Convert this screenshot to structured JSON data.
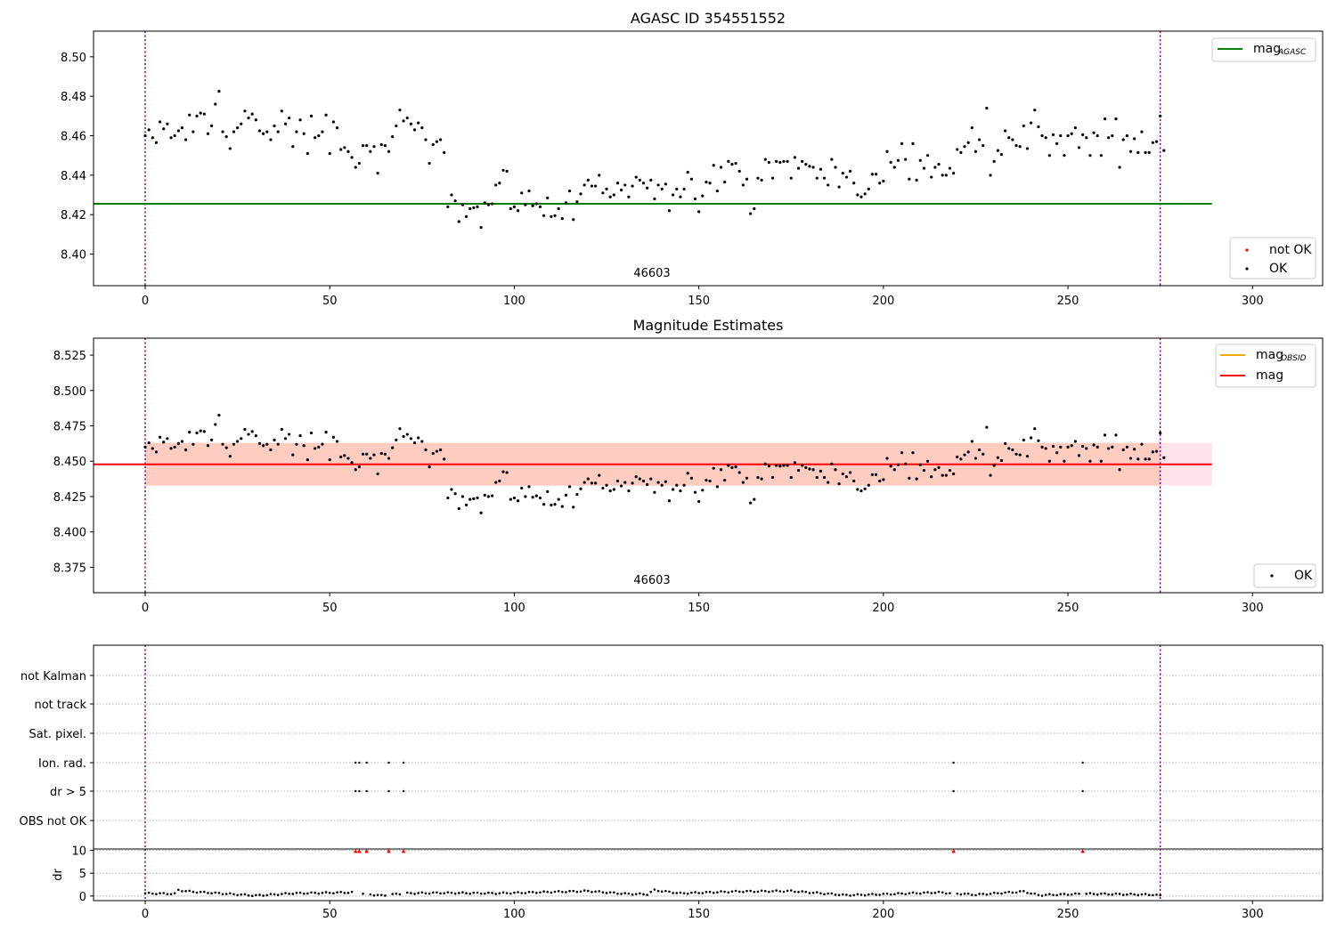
{
  "chart_data": [
    {
      "type": "scatter",
      "title": "AGASC ID 354551552",
      "obsid_label": "46603",
      "xlim": [
        -14,
        319
      ],
      "ylim": [
        8.384,
        8.513
      ],
      "x_ticks": [
        0,
        50,
        100,
        150,
        200,
        250,
        300
      ],
      "y_ticks": [
        8.4,
        8.42,
        8.44,
        8.46,
        8.48,
        8.5
      ],
      "y_tick_labels": [
        "8.40",
        "8.42",
        "8.44",
        "8.46",
        "8.48",
        "8.50"
      ],
      "obsid_boundaries": [
        0,
        275
      ],
      "mag_agasc": 8.4255,
      "mag_agasc_range": [
        0,
        289
      ],
      "legend": {
        "lines": [
          {
            "label": "mag",
            "sub": "AGASC",
            "color": "#008000"
          }
        ],
        "markers": [
          {
            "label": "not OK",
            "color": "#ff0000"
          },
          {
            "label": "OK",
            "color": "#000000"
          }
        ]
      },
      "ok_points": "from series mag_series, indices 0-275"
    },
    {
      "type": "scatter",
      "title": "Magnitude Estimates",
      "obsid_label": "46603",
      "xlim": [
        -14,
        319
      ],
      "ylim": [
        8.357,
        8.537
      ],
      "x_ticks": [
        0,
        50,
        100,
        150,
        200,
        250,
        300
      ],
      "y_ticks": [
        8.375,
        8.4,
        8.425,
        8.45,
        8.475,
        8.5,
        8.525
      ],
      "y_tick_labels": [
        "8.375",
        "8.400",
        "8.425",
        "8.450",
        "8.475",
        "8.500",
        "8.525"
      ],
      "obsid_boundaries": [
        0,
        275
      ],
      "mag_obsid": 8.4478,
      "mag_obsid_band": [
        8.4327,
        8.4629
      ],
      "mag_obsid_range": [
        0,
        275
      ],
      "mag": 8.4478,
      "mag_band": [
        8.4327,
        8.4629
      ],
      "mag_range": [
        0,
        289
      ],
      "legend": {
        "lines": [
          {
            "label": "mag",
            "sub": "OBSID",
            "color": "#ffa500"
          },
          {
            "label": "mag",
            "sub": "",
            "color": "#ff0000"
          }
        ],
        "markers": [
          {
            "label": "OK",
            "color": "#000000"
          }
        ]
      }
    },
    {
      "type": "scatter",
      "flag_labels": [
        "not Kalman",
        "not track",
        "Sat. pixel.",
        "Ion. rad.",
        "dr > 5",
        "OBS not OK"
      ],
      "flag_points": {
        "Ion. rad.": [
          57,
          58,
          60,
          66,
          70,
          219,
          254
        ],
        "dr > 5": [
          57,
          58,
          60,
          66,
          70,
          219,
          254
        ]
      },
      "x_ticks": [
        0,
        50,
        100,
        150,
        200,
        250,
        300
      ],
      "xlim": [
        -14,
        319
      ],
      "obsid_boundaries": [
        0,
        275
      ]
    },
    {
      "type": "scatter",
      "ylabel": "dr",
      "y_ticks": [
        0,
        5,
        10
      ],
      "y_tick_labels": [
        "0",
        "5",
        "10"
      ],
      "ylim": [
        -1,
        10.3
      ],
      "x_ticks": [
        0,
        50,
        100,
        150,
        200,
        250,
        300
      ],
      "x_tick_labels": [
        "0",
        "50",
        "100",
        "150",
        "200",
        "250",
        "300"
      ],
      "xlim": [
        -14,
        319
      ],
      "clipped_outliers": [
        57,
        58,
        60,
        66,
        70,
        219,
        254
      ],
      "obsid_boundaries": [
        0,
        275
      ]
    }
  ],
  "mag_series": [
    8.46,
    8.463,
    8.459,
    8.4565,
    8.467,
    8.4635,
    8.466,
    8.459,
    8.46,
    8.4625,
    8.464,
    8.458,
    8.4705,
    8.462,
    8.47,
    8.4715,
    8.471,
    8.461,
    8.465,
    8.476,
    8.4825,
    8.462,
    8.4595,
    8.4535,
    8.462,
    8.464,
    8.466,
    8.4725,
    8.469,
    8.471,
    8.468,
    8.4625,
    8.461,
    8.462,
    8.458,
    8.465,
    8.462,
    8.4725,
    8.466,
    8.469,
    8.4545,
    8.462,
    8.468,
    8.461,
    8.451,
    8.47,
    8.459,
    8.46,
    8.462,
    8.4705,
    8.451,
    8.467,
    8.464,
    8.453,
    8.454,
    8.452,
    8.449,
    8.444,
    8.446,
    8.455,
    8.455,
    8.452,
    8.4545,
    8.441,
    8.4555,
    8.455,
    8.452,
    8.4595,
    8.465,
    8.473,
    8.4675,
    8.469,
    8.466,
    8.463,
    8.4665,
    8.464,
    8.458,
    8.446,
    8.4555,
    8.457,
    8.458,
    8.4515,
    8.424,
    8.43,
    8.427,
    8.4165,
    8.425,
    8.419,
    8.423,
    8.4235,
    8.424,
    8.4135,
    8.426,
    8.425,
    8.4255,
    8.435,
    8.436,
    8.4425,
    8.442,
    8.423,
    8.424,
    8.422,
    8.431,
    8.425,
    8.432,
    8.4245,
    8.4255,
    8.424,
    8.4195,
    8.4285,
    8.419,
    8.4195,
    8.423,
    8.418,
    8.426,
    8.432,
    8.4175,
    8.4265,
    8.4305,
    8.435,
    8.4375,
    8.4345,
    8.4345,
    8.44,
    8.431,
    8.433,
    8.429,
    8.43,
    8.436,
    8.4325,
    8.435,
    8.429,
    8.4345,
    8.439,
    8.4375,
    8.436,
    8.4335,
    8.4375,
    8.428,
    8.435,
    8.433,
    8.4355,
    8.422,
    8.43,
    8.433,
    8.429,
    8.433,
    8.4415,
    8.438,
    8.428,
    8.4215,
    8.4295,
    8.4365,
    8.436,
    8.445,
    8.432,
    8.444,
    8.4365,
    8.447,
    8.4455,
    8.446,
    8.442,
    8.435,
    8.438,
    8.4205,
    8.423,
    8.4385,
    8.4375,
    8.448,
    8.4465,
    8.4385,
    8.447,
    8.4465,
    8.447,
    8.447,
    8.4385,
    8.449,
    8.4435,
    8.447,
    8.4455,
    8.4445,
    8.444,
    8.4385,
    8.443,
    8.4385,
    8.435,
    8.448,
    8.444,
    8.434,
    8.441,
    8.439,
    8.442,
    8.436,
    8.43,
    8.429,
    8.4305,
    8.433,
    8.4405,
    8.4405,
    8.436,
    8.437,
    8.452,
    8.4465,
    8.444,
    8.4475,
    8.456,
    8.448,
    8.438,
    8.456,
    8.4375,
    8.4475,
    8.4435,
    8.45,
    8.439,
    8.444,
    8.4455,
    8.44,
    8.44,
    8.4435,
    8.441,
    8.453,
    8.4515,
    8.4545,
    8.4565,
    8.464,
    8.452,
    8.458,
    8.455,
    8.474,
    8.44,
    8.447,
    8.4525,
    8.4505,
    8.4625,
    8.459,
    8.458,
    8.455,
    8.4545,
    8.465,
    8.4535,
    8.4665,
    8.473,
    8.4645,
    8.46,
    8.459,
    8.45,
    8.4605,
    8.456,
    8.46,
    8.45,
    8.46,
    8.461,
    8.464,
    8.454,
    8.4605,
    8.459,
    8.45,
    8.4615,
    8.46,
    8.45,
    8.4685,
    8.459,
    8.46,
    8.4685,
    8.444,
    8.458,
    8.46,
    8.452,
    8.4585,
    8.4515,
    8.462,
    8.4515,
    8.4515,
    8.4565,
    8.457,
    8.47,
    8.4525
  ],
  "dr_series_profile": [
    [
      0,
      0.6
    ],
    [
      8,
      0.5
    ],
    [
      9,
      1.3
    ],
    [
      12,
      1.0
    ],
    [
      20,
      0.6
    ],
    [
      30,
      0.1
    ],
    [
      40,
      0.6
    ],
    [
      56,
      0.8
    ],
    [
      64,
      0.1
    ],
    [
      70,
      0.6
    ],
    [
      80,
      0.7
    ],
    [
      95,
      0.6
    ],
    [
      110,
      0.9
    ],
    [
      120,
      1.1
    ],
    [
      130,
      0.5
    ],
    [
      136,
      0.4
    ],
    [
      138,
      1.3
    ],
    [
      145,
      0.6
    ],
    [
      160,
      1.0
    ],
    [
      175,
      1.1
    ],
    [
      190,
      0.2
    ],
    [
      200,
      0.4
    ],
    [
      215,
      0.8
    ],
    [
      225,
      0.3
    ],
    [
      238,
      1.0
    ],
    [
      242,
      0.2
    ],
    [
      255,
      0.5
    ],
    [
      273,
      0.3
    ],
    [
      275,
      0.1
    ]
  ]
}
